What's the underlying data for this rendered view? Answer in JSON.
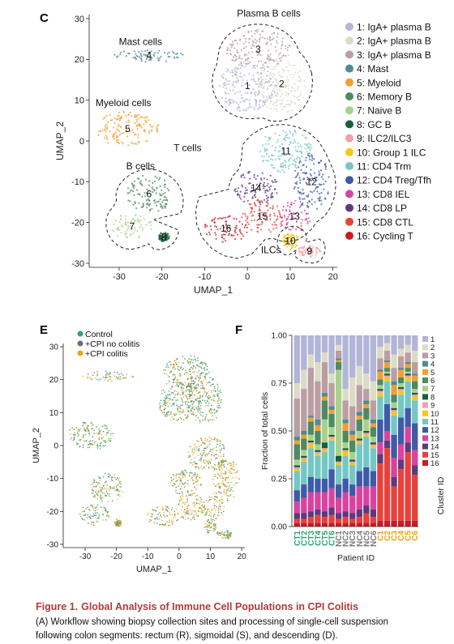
{
  "chart_data": [
    {
      "panel": "C",
      "type": "scatter",
      "xlabel": "UMAP_1",
      "ylabel": "UMAP_2",
      "xlim": [
        -37,
        21
      ],
      "ylim": [
        -31,
        31
      ],
      "xticks": [
        -30,
        -20,
        -10,
        0,
        10,
        20
      ],
      "yticks": [
        30,
        20,
        10,
        0,
        -10,
        -20,
        -30
      ],
      "grid": false,
      "legend_position": "right",
      "clusters": [
        {
          "id": "1",
          "label": "1: IgA+ plasma B",
          "color": "#b2b4d8",
          "cx": 0,
          "cy": 13.5,
          "rx": 6.5,
          "ry": 6
        },
        {
          "id": "2",
          "label": "2: IgA+ plasma B",
          "color": "#dcdbc6",
          "cx": 8,
          "cy": 14,
          "rx": 5.5,
          "ry": 7
        },
        {
          "id": "3",
          "label": "3: IgA+ plasma B",
          "color": "#b99ea2",
          "cx": 2.5,
          "cy": 22.5,
          "rx": 7,
          "ry": 4.5
        },
        {
          "id": "4",
          "label": "4: Mast",
          "color": "#4f8b93",
          "cx": -23,
          "cy": 21,
          "rx": 8,
          "ry": 1.3
        },
        {
          "id": "5",
          "label": "5: Myeloid",
          "color": "#f0a032",
          "cx": -28,
          "cy": 3,
          "rx": 7,
          "ry": 4
        },
        {
          "id": "6",
          "label": "6: Memory B",
          "color": "#4f8a60",
          "cx": -23,
          "cy": -13,
          "rx": 5,
          "ry": 4.5
        },
        {
          "id": "7",
          "label": "7: Naive B",
          "color": "#a9d18e",
          "cx": -27,
          "cy": -21,
          "rx": 4.5,
          "ry": 3
        },
        {
          "id": "8",
          "label": "8: GC B",
          "color": "#1b5e3b",
          "cx": -19.5,
          "cy": -23.5,
          "rx": 1.2,
          "ry": 1
        },
        {
          "id": "9",
          "label": "9: ILC2/ILC3",
          "color": "#f2a0a6",
          "cx": 14.5,
          "cy": -27,
          "rx": 2.5,
          "ry": 1.2
        },
        {
          "id": "10",
          "label": "10: Group 1 ILC",
          "color": "#f4c81a",
          "cx": 10,
          "cy": -24.5,
          "rx": 1.8,
          "ry": 2
        },
        {
          "id": "11",
          "label": "11: CD4 Trm",
          "color": "#74c7c5",
          "cx": 9,
          "cy": -2.5,
          "rx": 6,
          "ry": 5
        },
        {
          "id": "12",
          "label": "12: CD4 Treg/Tfh",
          "color": "#3d5ba8",
          "cx": 15,
          "cy": -10,
          "rx": 4,
          "ry": 6.5
        },
        {
          "id": "13",
          "label": "13: CD8 IEL",
          "color": "#d9439f",
          "cx": 11,
          "cy": -18.5,
          "rx": 3.5,
          "ry": 4
        },
        {
          "id": "14",
          "label": "14: CD8 LP",
          "color": "#5c3a7e",
          "cx": 2,
          "cy": -11.5,
          "rx": 5,
          "ry": 4
        },
        {
          "id": "15",
          "label": "15: CD8 CTL",
          "color": "#e8413c",
          "cx": 3.5,
          "cy": -18.5,
          "rx": 4.5,
          "ry": 4
        },
        {
          "id": "16",
          "label": "16: Cycling T",
          "color": "#c71d24",
          "cx": -5,
          "cy": -21.5,
          "rx": 5,
          "ry": 3
        }
      ],
      "annotations": [
        "Mast cells",
        "Plasma B cells",
        "Myeloid cells",
        "T cells",
        "B cells",
        "ILCs"
      ]
    },
    {
      "panel": "E",
      "type": "scatter",
      "xlabel": "UMAP_1",
      "ylabel": "UMAP_2",
      "xlim": [
        -37,
        21
      ],
      "ylim": [
        -31,
        31
      ],
      "xticks": [
        -30,
        -20,
        -10,
        0,
        10,
        20
      ],
      "yticks": [
        30,
        20,
        10,
        0,
        -10,
        -20,
        -30
      ],
      "series": [
        {
          "name": "Control",
          "color": "#2aa86a"
        },
        {
          "name": "+CPI no colitis",
          "color": "#6e6e6e"
        },
        {
          "name": "+CPI colitis",
          "color": "#e8a518"
        }
      ]
    },
    {
      "panel": "F",
      "type": "bar",
      "stacked": true,
      "xlabel": "Patient ID",
      "ylabel": "Fraction of total cells",
      "legend_title": "Cluster ID",
      "ylim": [
        0,
        1
      ],
      "yticks": [
        "0.00",
        "0.25",
        "0.50",
        "0.75",
        "1.00"
      ],
      "categories": [
        "CT1",
        "CT2",
        "CT3",
        "CT4",
        "CT5",
        "CT6",
        "NC1",
        "NC2",
        "NC3",
        "NC4",
        "NC5",
        "NC6",
        "C1",
        "C2",
        "C3",
        "C4",
        "C5",
        "C6"
      ],
      "category_colors": [
        "#2aa86a",
        "#2aa86a",
        "#2aa86a",
        "#2aa86a",
        "#2aa86a",
        "#2aa86a",
        "#7a7a7a",
        "#7a7a7a",
        "#7a7a7a",
        "#7a7a7a",
        "#7a7a7a",
        "#7a7a7a",
        "#e8a518",
        "#e8a518",
        "#e8a518",
        "#e8a518",
        "#e8a518",
        "#e8a518"
      ],
      "series": [
        {
          "name": "1",
          "values": [
            0.25,
            0.18,
            0.1,
            0.14,
            0.09,
            0.2,
            0.05,
            0.28,
            0.22,
            0.16,
            0.2,
            0.24,
            0.06,
            0.04,
            0.1,
            0.07,
            0.05,
            0.08
          ]
        },
        {
          "name": "2",
          "values": [
            0.08,
            0.1,
            0.07,
            0.1,
            0.05,
            0.05,
            0.03,
            0.06,
            0.15,
            0.1,
            0.08,
            0.1,
            0.06,
            0.04,
            0.07,
            0.04,
            0.04,
            0.06
          ]
        },
        {
          "name": "3",
          "values": [
            0.2,
            0.22,
            0.25,
            0.2,
            0.16,
            0.12,
            0.04,
            0.1,
            0.13,
            0.14,
            0.06,
            0.1,
            0.06,
            0.05,
            0.07,
            0.06,
            0.05,
            0.06
          ]
        },
        {
          "name": "4",
          "values": [
            0.02,
            0.02,
            0.01,
            0.03,
            0.02,
            0.02,
            0.01,
            0.02,
            0.02,
            0.02,
            0.02,
            0.02,
            0.01,
            0.01,
            0.02,
            0.01,
            0.01,
            0.01
          ]
        },
        {
          "name": "5",
          "values": [
            0.02,
            0.02,
            0.02,
            0.03,
            0.02,
            0.02,
            0.01,
            0.04,
            0.03,
            0.02,
            0.02,
            0.02,
            0.04,
            0.03,
            0.05,
            0.04,
            0.02,
            0.03
          ]
        },
        {
          "name": "6",
          "values": [
            0.08,
            0.06,
            0.07,
            0.07,
            0.1,
            0.07,
            0.04,
            0.06,
            0.06,
            0.06,
            0.06,
            0.05,
            0.03,
            0.02,
            0.04,
            0.03,
            0.02,
            0.04
          ]
        },
        {
          "name": "7",
          "values": [
            0.03,
            0.03,
            0.03,
            0.03,
            0.12,
            0.04,
            0.45,
            0.03,
            0.04,
            0.04,
            0.06,
            0.03,
            0.02,
            0.01,
            0.03,
            0.02,
            0.01,
            0.02
          ]
        },
        {
          "name": "8",
          "values": [
            0.01,
            0.01,
            0.01,
            0.01,
            0.03,
            0.01,
            0.03,
            0.01,
            0.01,
            0.01,
            0.01,
            0.01,
            0.01,
            0.01,
            0.01,
            0.01,
            0.01,
            0.01
          ]
        },
        {
          "name": "9",
          "values": [
            0.01,
            0.01,
            0.01,
            0.01,
            0.01,
            0.01,
            0.01,
            0.01,
            0.01,
            0.01,
            0.01,
            0.01,
            0.01,
            0.01,
            0.01,
            0.01,
            0.01,
            0.01
          ]
        },
        {
          "name": "10",
          "values": [
            0.01,
            0.01,
            0.02,
            0.01,
            0.01,
            0.01,
            0.01,
            0.02,
            0.01,
            0.01,
            0.01,
            0.01,
            0.02,
            0.02,
            0.02,
            0.02,
            0.02,
            0.02
          ]
        },
        {
          "name": "11",
          "values": [
            0.1,
            0.12,
            0.15,
            0.12,
            0.14,
            0.15,
            0.1,
            0.12,
            0.1,
            0.14,
            0.16,
            0.12,
            0.12,
            0.12,
            0.1,
            0.12,
            0.14,
            0.12
          ]
        },
        {
          "name": "12",
          "values": [
            0.06,
            0.07,
            0.08,
            0.07,
            0.07,
            0.1,
            0.07,
            0.07,
            0.06,
            0.08,
            0.1,
            0.08,
            0.12,
            0.14,
            0.12,
            0.14,
            0.1,
            0.14
          ]
        },
        {
          "name": "13",
          "values": [
            0.06,
            0.08,
            0.1,
            0.09,
            0.1,
            0.1,
            0.08,
            0.1,
            0.09,
            0.12,
            0.1,
            0.12,
            0.06,
            0.05,
            0.1,
            0.08,
            0.08,
            0.08
          ]
        },
        {
          "name": "14",
          "values": [
            0.03,
            0.03,
            0.03,
            0.03,
            0.03,
            0.04,
            0.03,
            0.03,
            0.03,
            0.04,
            0.04,
            0.04,
            0.05,
            0.04,
            0.05,
            0.05,
            0.05,
            0.05
          ]
        },
        {
          "name": "15",
          "values": [
            0.02,
            0.02,
            0.03,
            0.04,
            0.03,
            0.04,
            0.02,
            0.03,
            0.02,
            0.03,
            0.05,
            0.03,
            0.3,
            0.38,
            0.18,
            0.27,
            0.36,
            0.24
          ]
        },
        {
          "name": "16",
          "values": [
            0.02,
            0.02,
            0.02,
            0.02,
            0.02,
            0.02,
            0.02,
            0.02,
            0.02,
            0.02,
            0.02,
            0.02,
            0.03,
            0.03,
            0.03,
            0.03,
            0.03,
            0.03
          ]
        }
      ]
    }
  ],
  "caption": {
    "figure": "Figure 1.",
    "title": "Global Analysis of Immune Cell Populations in CPI Colitis",
    "line1": "(A) Workflow showing biopsy collection sites and processing of single-cell suspension",
    "line2": "following colon segments: rectum (R), sigmoidal (S), and descending (D)."
  }
}
